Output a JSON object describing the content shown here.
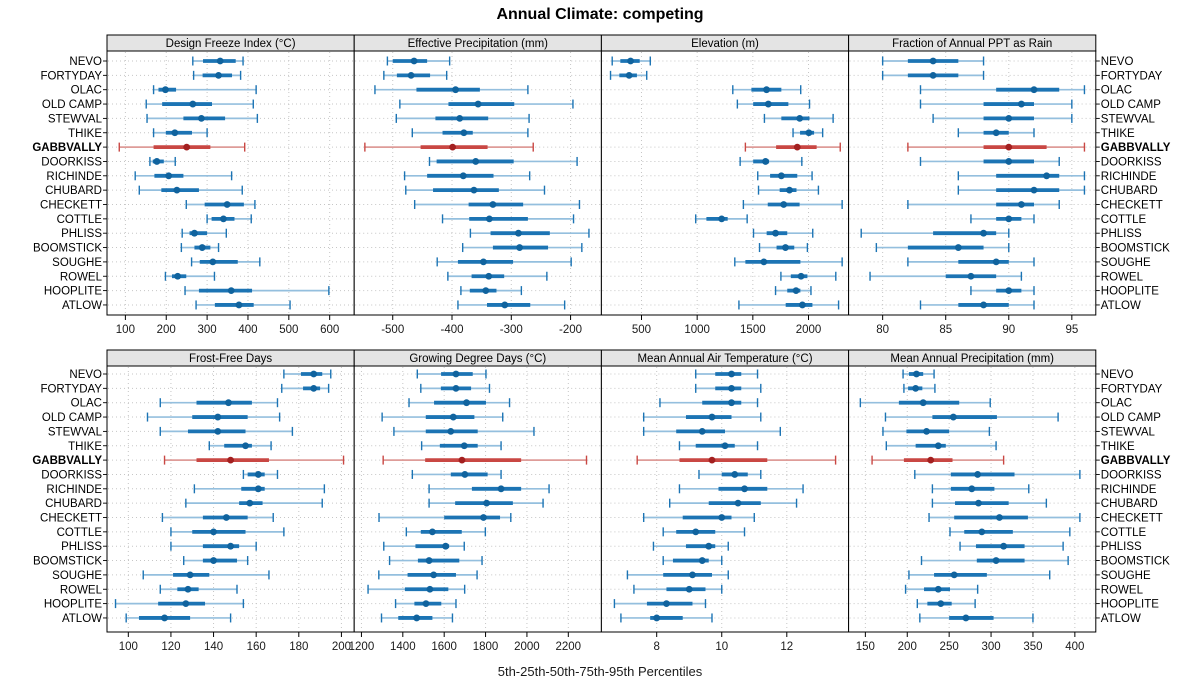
{
  "title": "Annual Climate: competing",
  "caption": "5th-25th-50th-75th-95th Percentiles",
  "colors": {
    "blue_main": "#1c74b4",
    "blue_light": "#94bfde",
    "blue_dot": "#10639e",
    "red_main": "#c94743",
    "red_light": "#de9c98",
    "red_dot": "#a32020",
    "strip_bg": "#e4e4e4",
    "grid": "#c6c6c6",
    "panel_border": "#000000"
  },
  "chart_data": {
    "type": "scatter",
    "variant": "trellis-percentile-interval-plot",
    "title": "Annual Climate: competing",
    "xlabel": "5th-25th-50th-75th-95th Percentiles",
    "percentiles": [
      5,
      25,
      50,
      75,
      95
    ],
    "legend_position": "none",
    "grid": "dotted",
    "highlight_site": "GABBVALLY",
    "categories": [
      "NEVO",
      "FORTYDAY",
      "OLAC",
      "OLD CAMP",
      "STEWVAL",
      "THIKE",
      "GABBVALLY",
      "DOORKISS",
      "RICHINDE",
      "CHUBARD",
      "CHECKETT",
      "COTTLE",
      "PHLISS",
      "BOOMSTICK",
      "SOUGHE",
      "ROWEL",
      "HOOPLITE",
      "ATLOW"
    ],
    "panels": [
      {
        "title": "Design Freeze Index (°C)",
        "row": 0,
        "col": 0,
        "ticks": [
          100,
          200,
          300,
          400,
          500,
          600
        ],
        "domain": [
          55,
          660
        ],
        "series": [
          [
            265,
            290,
            332,
            370,
            388
          ],
          [
            267,
            289,
            328,
            361,
            382
          ],
          [
            169,
            181,
            198,
            224,
            420
          ],
          [
            151,
            190,
            265,
            312,
            413
          ],
          [
            153,
            242,
            286,
            344,
            423
          ],
          [
            169,
            199,
            221,
            263,
            300
          ],
          [
            85,
            169,
            250,
            308,
            392
          ],
          [
            160,
            167,
            177,
            194,
            222
          ],
          [
            124,
            171,
            206,
            242,
            360
          ],
          [
            134,
            188,
            226,
            280,
            386
          ],
          [
            249,
            294,
            349,
            390,
            417
          ],
          [
            300,
            311,
            340,
            367,
            408
          ],
          [
            239,
            257,
            269,
            300,
            347
          ],
          [
            237,
            269,
            288,
            308,
            328
          ],
          [
            262,
            282,
            314,
            375,
            429
          ],
          [
            198,
            214,
            228,
            249,
            318
          ],
          [
            246,
            280,
            359,
            410,
            598
          ],
          [
            273,
            319,
            378,
            414,
            503
          ]
        ]
      },
      {
        "title": "Effective Precipitation (mm)",
        "row": 0,
        "col": 1,
        "ticks": [
          -500,
          -400,
          -300,
          -200
        ],
        "domain": [
          -565,
          -148
        ],
        "series": [
          [
            -509,
            -500,
            -464,
            -442,
            -404
          ],
          [
            -515,
            -493,
            -469,
            -437,
            -409
          ],
          [
            -530,
            -460,
            -394,
            -353,
            -272
          ],
          [
            -488,
            -406,
            -356,
            -295,
            -196
          ],
          [
            -494,
            -428,
            -387,
            -339,
            -270
          ],
          [
            -467,
            -416,
            -380,
            -365,
            -272
          ],
          [
            -547,
            -453,
            -399,
            -340,
            -263
          ],
          [
            -438,
            -426,
            -360,
            -296,
            -189
          ],
          [
            -480,
            -442,
            -381,
            -330,
            -269
          ],
          [
            -478,
            -432,
            -363,
            -321,
            -244
          ],
          [
            -463,
            -372,
            -331,
            -280,
            -185
          ],
          [
            -416,
            -371,
            -337,
            -272,
            -195
          ],
          [
            -369,
            -335,
            -288,
            -235,
            -169
          ],
          [
            -382,
            -331,
            -286,
            -238,
            -181
          ],
          [
            -425,
            -390,
            -347,
            -297,
            -199
          ],
          [
            -407,
            -367,
            -338,
            -312,
            -240
          ],
          [
            -385,
            -370,
            -343,
            -325,
            -283
          ],
          [
            -390,
            -341,
            -311,
            -268,
            -210
          ]
        ]
      },
      {
        "title": "Elevation (m)",
        "row": 0,
        "col": 2,
        "ticks": [
          500,
          1000,
          1500,
          2000
        ],
        "domain": [
          140,
          2360
        ],
        "series": [
          [
            237,
            310,
            402,
            484,
            579
          ],
          [
            222,
            301,
            389,
            459,
            547
          ],
          [
            1320,
            1487,
            1623,
            1756,
            1930
          ],
          [
            1361,
            1503,
            1639,
            1819,
            2009
          ],
          [
            1604,
            1756,
            1921,
            2009,
            2221
          ],
          [
            1861,
            1924,
            2003,
            2050,
            2127
          ],
          [
            1433,
            1709,
            1899,
            2073,
            2285
          ],
          [
            1386,
            1503,
            1614,
            1646,
            1940
          ],
          [
            1544,
            1655,
            1756,
            1899,
            2032
          ],
          [
            1551,
            1741,
            1829,
            1892,
            2089
          ],
          [
            1415,
            1634,
            1777,
            1920,
            2302
          ],
          [
            987,
            1083,
            1220,
            1274,
            1449
          ],
          [
            1506,
            1624,
            1704,
            1809,
            2038
          ],
          [
            1560,
            1713,
            1793,
            1872,
            1990
          ],
          [
            1338,
            1433,
            1599,
            1927,
            2302
          ],
          [
            1752,
            1841,
            1933,
            1990,
            2245
          ],
          [
            1704,
            1809,
            1888,
            1927,
            2022
          ],
          [
            1375,
            1795,
            1945,
            2035,
            2270
          ]
        ]
      },
      {
        "title": "Fraction of Annual PPT as Rain",
        "row": 0,
        "col": 3,
        "ticks": [
          80,
          85,
          90,
          95
        ],
        "domain": [
          77.3,
          96.9
        ],
        "series": [
          [
            80,
            82,
            84,
            86,
            88
          ],
          [
            80,
            82,
            84,
            86,
            88
          ],
          [
            83,
            89,
            92,
            94,
            96
          ],
          [
            83,
            88,
            91,
            92,
            95
          ],
          [
            84,
            88,
            90,
            92,
            95
          ],
          [
            86,
            88,
            89,
            90,
            92
          ],
          [
            82,
            88,
            90,
            93,
            96
          ],
          [
            83,
            88,
            90,
            92,
            94
          ],
          [
            86,
            89,
            93,
            94,
            96
          ],
          [
            86,
            89,
            92,
            94,
            96
          ],
          [
            82,
            89,
            91,
            92,
            94
          ],
          [
            87,
            89,
            90,
            91,
            92
          ],
          [
            78.3,
            84,
            88,
            89,
            90
          ],
          [
            79.5,
            82,
            86,
            88,
            90
          ],
          [
            82,
            86,
            89,
            90,
            92
          ],
          [
            79,
            85,
            87,
            89,
            91
          ],
          [
            87,
            89,
            90,
            91,
            92
          ],
          [
            83,
            86,
            88,
            90,
            92
          ]
        ]
      },
      {
        "title": "Frost-Free Days",
        "row": 1,
        "col": 0,
        "ticks": [
          100,
          120,
          140,
          160,
          180,
          200
        ],
        "domain": [
          90,
          206
        ],
        "series": [
          [
            173,
            181,
            187,
            191,
            195
          ],
          [
            172,
            182,
            187,
            190,
            194
          ],
          [
            115,
            132,
            147,
            158,
            170
          ],
          [
            109,
            130,
            142,
            156,
            171
          ],
          [
            115,
            128,
            142,
            155,
            177
          ],
          [
            138,
            145,
            155,
            158,
            167
          ],
          [
            117,
            132,
            148,
            166,
            201
          ],
          [
            154,
            156,
            161,
            164,
            170
          ],
          [
            131,
            153,
            161,
            164,
            192
          ],
          [
            127,
            152,
            157,
            163,
            191
          ],
          [
            116,
            135,
            146,
            156,
            168
          ],
          [
            120,
            130,
            140,
            155,
            173
          ],
          [
            120,
            135,
            148,
            152,
            160
          ],
          [
            126,
            135,
            140,
            151,
            156
          ],
          [
            107,
            121,
            129,
            138,
            166
          ],
          [
            115,
            123,
            128,
            133,
            151
          ],
          [
            94,
            114,
            127,
            136,
            154
          ],
          [
            99,
            105,
            117,
            129,
            148
          ]
        ]
      },
      {
        "title": "Growing Degree Days (°C)",
        "row": 1,
        "col": 1,
        "ticks": [
          1200,
          1400,
          1600,
          1800,
          2000,
          2200
        ],
        "domain": [
          1165,
          2360
        ],
        "series": [
          [
            1470,
            1585,
            1657,
            1738,
            1802
          ],
          [
            1487,
            1584,
            1657,
            1730,
            1819
          ],
          [
            1430,
            1551,
            1708,
            1802,
            1916
          ],
          [
            1300,
            1511,
            1644,
            1746,
            1883
          ],
          [
            1357,
            1511,
            1632,
            1762,
            2034
          ],
          [
            1491,
            1579,
            1697,
            1762,
            1875
          ],
          [
            1305,
            1508,
            1686,
            1972,
            2288
          ],
          [
            1446,
            1632,
            1700,
            1810,
            1875
          ],
          [
            1527,
            1734,
            1875,
            1972,
            2107
          ],
          [
            1527,
            1653,
            1805,
            1932,
            2078
          ],
          [
            1285,
            1600,
            1790,
            1870,
            1922
          ],
          [
            1417,
            1487,
            1543,
            1685,
            1799
          ],
          [
            1308,
            1461,
            1607,
            1624,
            1697
          ],
          [
            1336,
            1473,
            1527,
            1673,
            1783
          ],
          [
            1284,
            1423,
            1549,
            1657,
            1759
          ],
          [
            1232,
            1410,
            1531,
            1620,
            1699
          ],
          [
            1365,
            1456,
            1512,
            1586,
            1657
          ],
          [
            1297,
            1378,
            1467,
            1543,
            1640
          ]
        ]
      },
      {
        "title": "Mean Annual Air Temperature (°C)",
        "row": 1,
        "col": 2,
        "ticks": [
          8,
          10,
          12
        ],
        "domain": [
          6.3,
          13.9
        ],
        "series": [
          [
            9.2,
            9.8,
            10.3,
            10.6,
            11.1
          ],
          [
            9.2,
            9.8,
            10.3,
            10.6,
            11.2
          ],
          [
            8.1,
            9.4,
            10.3,
            10.6,
            11.1
          ],
          [
            7.6,
            8.9,
            9.7,
            10.3,
            11.2
          ],
          [
            7.6,
            8.6,
            9.4,
            10.1,
            11.8
          ],
          [
            8.7,
            9.2,
            10.1,
            10.4,
            11.1
          ],
          [
            7.4,
            8.7,
            9.7,
            11.4,
            13.5
          ],
          [
            9.3,
            10.0,
            10.4,
            10.8,
            11.2
          ],
          [
            8.7,
            9.9,
            10.7,
            11.4,
            12.5
          ],
          [
            8.4,
            9.6,
            10.5,
            11.2,
            12.3
          ],
          [
            7.6,
            8.8,
            10.0,
            10.3,
            11.0
          ],
          [
            8.2,
            8.6,
            9.2,
            9.8,
            10.7
          ],
          [
            7.9,
            8.9,
            9.6,
            9.8,
            10.2
          ],
          [
            8.2,
            8.5,
            9.4,
            9.6,
            10.0
          ],
          [
            7.1,
            8.2,
            9.1,
            9.7,
            10.2
          ],
          [
            7.3,
            8.3,
            9.0,
            9.5,
            10.0
          ],
          [
            6.7,
            7.7,
            8.3,
            9.1,
            9.5
          ],
          [
            6.9,
            7.8,
            8.0,
            8.8,
            9.7
          ]
        ]
      },
      {
        "title": "Mean Annual Precipitation (mm)",
        "row": 1,
        "col": 3,
        "ticks": [
          150,
          200,
          250,
          300,
          350,
          400
        ],
        "domain": [
          130,
          425
        ],
        "series": [
          [
            195,
            202,
            211,
            219,
            232
          ],
          [
            196,
            201,
            210,
            218,
            233
          ],
          [
            144,
            190,
            219,
            262,
            299
          ],
          [
            174,
            230,
            255,
            307,
            380
          ],
          [
            171,
            199,
            223,
            250,
            298
          ],
          [
            175,
            210,
            237,
            246,
            306
          ],
          [
            158,
            196,
            228,
            254,
            315
          ],
          [
            209,
            252,
            284,
            328,
            406
          ],
          [
            230,
            252,
            277,
            304,
            345
          ],
          [
            230,
            257,
            285,
            321,
            366
          ],
          [
            226,
            256,
            310,
            344,
            406
          ],
          [
            251,
            268,
            289,
            326,
            394
          ],
          [
            263,
            282,
            315,
            340,
            386
          ],
          [
            217,
            283,
            306,
            340,
            392
          ],
          [
            202,
            232,
            256,
            295,
            370
          ],
          [
            198,
            220,
            237,
            251,
            284
          ],
          [
            212,
            224,
            240,
            253,
            281
          ],
          [
            215,
            250,
            270,
            303,
            350
          ]
        ]
      }
    ]
  }
}
